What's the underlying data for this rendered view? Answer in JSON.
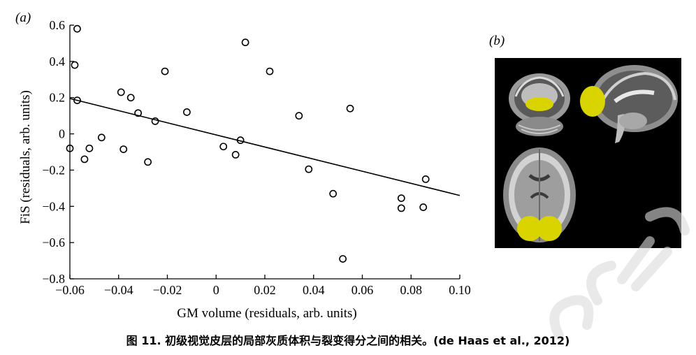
{
  "panel_a_label": "(a)",
  "panel_b_label": "(b)",
  "caption": "图 11. 初级视觉皮层的局部灰质体积与裂变得分之间的相关。(de Haas et al., 2012)",
  "colors": {
    "marker": "#000000",
    "brain_highlight": "#d9d400",
    "brain_bg": "#000000"
  },
  "chart_data": {
    "type": "scatter",
    "xlabel": "GM volume (residuals, arb. units)",
    "ylabel": "FiS (residuals, arb. units)",
    "xlim": [
      -0.06,
      0.1
    ],
    "ylim": [
      -0.8,
      0.6
    ],
    "xticks": [
      -0.06,
      -0.04,
      -0.02,
      0,
      0.02,
      0.04,
      0.06,
      0.08,
      0.1
    ],
    "xtick_labels": [
      "−0.06",
      "−0.04",
      "−0.02",
      "0",
      "0.02",
      "0.04",
      "0.06",
      "0.08",
      "0.10"
    ],
    "yticks": [
      0.6,
      0.4,
      0.2,
      0,
      -0.2,
      -0.4,
      -0.6,
      -0.8
    ],
    "ytick_labels": [
      "0.6",
      "0.4",
      "0.2",
      "0",
      "−0.2",
      "−0.4",
      "−0.6",
      "−0.8"
    ],
    "points": [
      {
        "x": -0.057,
        "y": 0.58
      },
      {
        "x": -0.058,
        "y": 0.38
      },
      {
        "x": -0.057,
        "y": 0.185
      },
      {
        "x": -0.06,
        "y": -0.08
      },
      {
        "x": -0.054,
        "y": -0.14
      },
      {
        "x": -0.052,
        "y": -0.08
      },
      {
        "x": -0.047,
        "y": -0.02
      },
      {
        "x": -0.039,
        "y": 0.23
      },
      {
        "x": -0.035,
        "y": 0.2
      },
      {
        "x": -0.032,
        "y": 0.115
      },
      {
        "x": -0.038,
        "y": -0.085
      },
      {
        "x": -0.028,
        "y": -0.155
      },
      {
        "x": -0.025,
        "y": 0.07
      },
      {
        "x": -0.021,
        "y": 0.345
      },
      {
        "x": -0.012,
        "y": 0.12
      },
      {
        "x": 0.003,
        "y": -0.07
      },
      {
        "x": 0.008,
        "y": -0.115
      },
      {
        "x": 0.01,
        "y": -0.035
      },
      {
        "x": 0.012,
        "y": 0.505
      },
      {
        "x": 0.022,
        "y": 0.345
      },
      {
        "x": 0.034,
        "y": 0.1
      },
      {
        "x": 0.038,
        "y": -0.195
      },
      {
        "x": 0.048,
        "y": -0.33
      },
      {
        "x": 0.052,
        "y": -0.69
      },
      {
        "x": 0.055,
        "y": 0.14
      },
      {
        "x": 0.076,
        "y": -0.355
      },
      {
        "x": 0.076,
        "y": -0.41
      },
      {
        "x": 0.085,
        "y": -0.405
      },
      {
        "x": 0.086,
        "y": -0.25
      }
    ],
    "regression": {
      "x": [
        -0.06,
        0.1
      ],
      "y": [
        0.195,
        -0.34
      ]
    },
    "grid": false,
    "legend": "none"
  }
}
